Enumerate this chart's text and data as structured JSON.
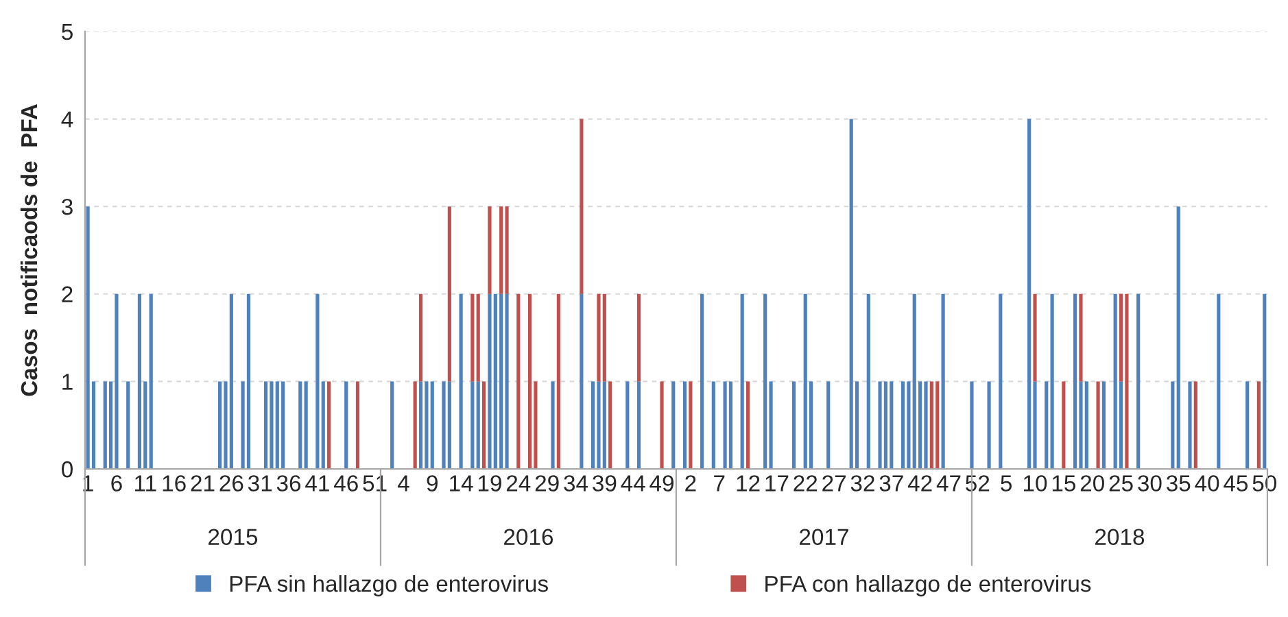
{
  "chart_data": {
    "type": "bar",
    "stacked": true,
    "ylabel": "Casos  notificaods de  PFA",
    "categories": [
      "1",
      null,
      null,
      null,
      null,
      "6",
      null,
      null,
      null,
      null,
      "11",
      null,
      null,
      null,
      null,
      "16",
      null,
      null,
      null,
      null,
      "21",
      null,
      null,
      null,
      null,
      "26",
      null,
      null,
      null,
      null,
      "31",
      null,
      null,
      null,
      null,
      "36",
      null,
      null,
      null,
      null,
      "41",
      null,
      null,
      null,
      null,
      "46",
      null,
      null,
      null,
      null,
      "51",
      null,
      null,
      null,
      null,
      "4",
      null,
      null,
      null,
      null,
      "9",
      null,
      null,
      null,
      null,
      "14",
      null,
      null,
      null,
      null,
      "19",
      null,
      null,
      null,
      null,
      "24",
      null,
      null,
      null,
      null,
      "29",
      null,
      null,
      null,
      null,
      "34",
      null,
      null,
      null,
      null,
      "39",
      null,
      null,
      null,
      null,
      "44",
      null,
      null,
      null,
      null,
      "49",
      null,
      null,
      null,
      null,
      "2",
      null,
      null,
      null,
      null,
      "7",
      null,
      null,
      null,
      null,
      "12",
      null,
      null,
      null,
      null,
      "17",
      null,
      null,
      null,
      null,
      "22",
      null,
      null,
      null,
      null,
      "27",
      null,
      null,
      null,
      null,
      "32",
      null,
      null,
      null,
      null,
      "37",
      null,
      null,
      null,
      null,
      "42",
      null,
      null,
      null,
      null,
      "47",
      null,
      null,
      null,
      null,
      "52",
      null,
      null,
      null,
      null,
      "5",
      null,
      null,
      null,
      null,
      "10",
      null,
      null,
      null,
      null,
      "15",
      null,
      null,
      null,
      null,
      "20",
      null,
      null,
      null,
      null,
      "25",
      null,
      null,
      null,
      null,
      "30",
      null,
      null,
      null,
      null,
      "35",
      null,
      null,
      null,
      null,
      "40",
      null,
      null,
      null,
      null,
      "45",
      null,
      null,
      null,
      null,
      "50"
    ],
    "series": [
      {
        "name": "PFA sin hallazgo de enterovirus",
        "color": "#4f81bd",
        "values": [
          3,
          1,
          null,
          1,
          1,
          2,
          null,
          1,
          null,
          2,
          1,
          2,
          null,
          null,
          null,
          null,
          null,
          null,
          null,
          null,
          null,
          null,
          null,
          1,
          1,
          2,
          null,
          1,
          2,
          null,
          null,
          1,
          1,
          1,
          1,
          null,
          null,
          1,
          1,
          null,
          2,
          1,
          null,
          null,
          null,
          1,
          null,
          null,
          null,
          null,
          null,
          null,
          null,
          1,
          null,
          null,
          null,
          null,
          1,
          1,
          1,
          null,
          1,
          1,
          null,
          2,
          null,
          1,
          1,
          null,
          2,
          2,
          2,
          2,
          null,
          null,
          null,
          null,
          null,
          null,
          null,
          1,
          null,
          null,
          null,
          null,
          2,
          null,
          1,
          1,
          1,
          null,
          null,
          null,
          1,
          null,
          1,
          null,
          null,
          null,
          null,
          null,
          1,
          null,
          1,
          null,
          null,
          2,
          null,
          1,
          null,
          1,
          1,
          null,
          2,
          null,
          null,
          null,
          2,
          1,
          null,
          null,
          null,
          1,
          null,
          2,
          1,
          null,
          null,
          1,
          null,
          null,
          null,
          4,
          1,
          null,
          2,
          null,
          1,
          1,
          1,
          null,
          1,
          1,
          2,
          1,
          1,
          null,
          null,
          2,
          null,
          null,
          null,
          null,
          1,
          null,
          null,
          1,
          null,
          2,
          null,
          null,
          null,
          null,
          4,
          1,
          null,
          1,
          2,
          null,
          null,
          null,
          2,
          1,
          1,
          null,
          null,
          1,
          null,
          2,
          1,
          null,
          null,
          2,
          null,
          null,
          null,
          null,
          null,
          1,
          3,
          null,
          1,
          null,
          null,
          null,
          null,
          2,
          null,
          null,
          null,
          null,
          1,
          null,
          null,
          2
        ]
      },
      {
        "name": "PFA con hallazgo de enterovirus",
        "color": "#c0504d",
        "values": [
          null,
          null,
          null,
          null,
          null,
          null,
          null,
          null,
          null,
          null,
          null,
          null,
          null,
          null,
          null,
          null,
          null,
          null,
          null,
          null,
          null,
          null,
          null,
          null,
          null,
          null,
          null,
          null,
          null,
          null,
          null,
          null,
          null,
          null,
          null,
          null,
          null,
          null,
          null,
          null,
          null,
          null,
          1,
          null,
          null,
          null,
          null,
          1,
          null,
          null,
          null,
          null,
          null,
          null,
          null,
          null,
          null,
          1,
          1,
          null,
          null,
          null,
          null,
          2,
          null,
          null,
          null,
          1,
          1,
          1,
          1,
          null,
          1,
          1,
          null,
          2,
          null,
          2,
          1,
          null,
          null,
          null,
          2,
          null,
          null,
          null,
          2,
          null,
          null,
          1,
          1,
          1,
          null,
          null,
          null,
          null,
          1,
          null,
          null,
          null,
          1,
          null,
          null,
          null,
          null,
          1,
          null,
          null,
          null,
          null,
          null,
          null,
          null,
          null,
          null,
          1,
          null,
          null,
          null,
          null,
          null,
          null,
          null,
          null,
          null,
          null,
          null,
          null,
          null,
          null,
          null,
          null,
          null,
          null,
          null,
          null,
          null,
          null,
          null,
          null,
          null,
          null,
          null,
          null,
          null,
          null,
          null,
          1,
          1,
          null,
          null,
          null,
          null,
          null,
          null,
          null,
          null,
          null,
          null,
          null,
          null,
          null,
          null,
          null,
          null,
          1,
          null,
          null,
          null,
          null,
          1,
          null,
          null,
          1,
          null,
          null,
          1,
          null,
          null,
          null,
          1,
          2,
          null,
          null,
          null,
          null,
          null,
          null,
          null,
          null,
          null,
          null,
          null,
          1,
          null,
          null,
          null,
          null,
          null,
          null,
          null,
          null,
          null,
          null,
          1,
          null
        ]
      }
    ],
    "ylim": [
      0,
      5
    ],
    "yticks": [
      0,
      1,
      2,
      3,
      4,
      5
    ],
    "grid": "y",
    "legend": "bottom",
    "annotations": [
      "2015",
      "2016",
      "2017",
      "2018"
    ]
  }
}
